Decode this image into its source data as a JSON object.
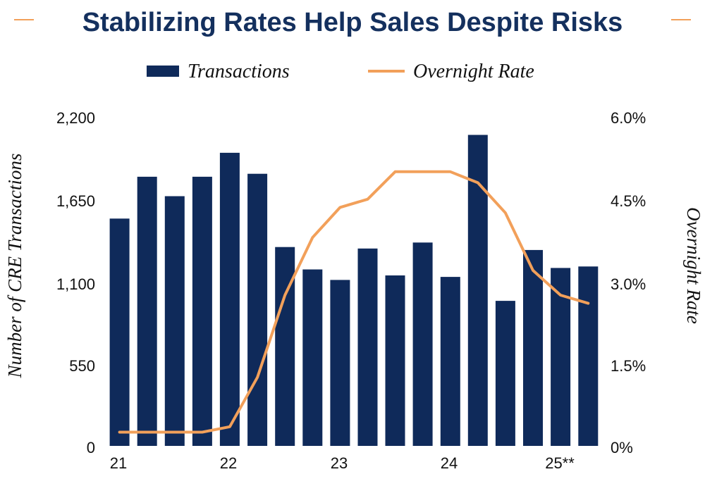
{
  "colors": {
    "navy": "#0f2a5a",
    "orange": "#f2a05a",
    "title": "#14305e",
    "text": "#111111"
  },
  "chart_data": {
    "type": "bar",
    "title": "Stabilizing Rates Help Sales Despite Risks",
    "ylabel": "Number of CRE Transactions",
    "ylabel_right": "Overnight Rate",
    "ylim": [
      0,
      2200
    ],
    "ylim_right": [
      0,
      6.0
    ],
    "yticks": [
      "2,200",
      "1,650",
      "1,100",
      "550",
      "0"
    ],
    "yticks_right": [
      "6.0%",
      "4.5%",
      "3.0%",
      "1.5%",
      "0%"
    ],
    "x_tick_labels": [
      "21",
      "22",
      "23",
      "24",
      "25**"
    ],
    "legend_position": "top-center",
    "grid": false,
    "series": [
      {
        "name": "Transactions",
        "type": "bar",
        "axis": "left",
        "values": [
          1520,
          1800,
          1670,
          1800,
          1960,
          1820,
          1330,
          1180,
          1110,
          1320,
          1140,
          1360,
          1130,
          2080,
          970,
          1310,
          1190,
          1200
        ]
      },
      {
        "name": "Overnight Rate",
        "type": "line",
        "axis": "right",
        "values": [
          0.25,
          0.25,
          0.25,
          0.25,
          0.35,
          1.25,
          2.75,
          3.8,
          4.35,
          4.5,
          5.0,
          5.0,
          5.0,
          4.8,
          4.25,
          3.2,
          2.75,
          2.6
        ]
      }
    ]
  }
}
